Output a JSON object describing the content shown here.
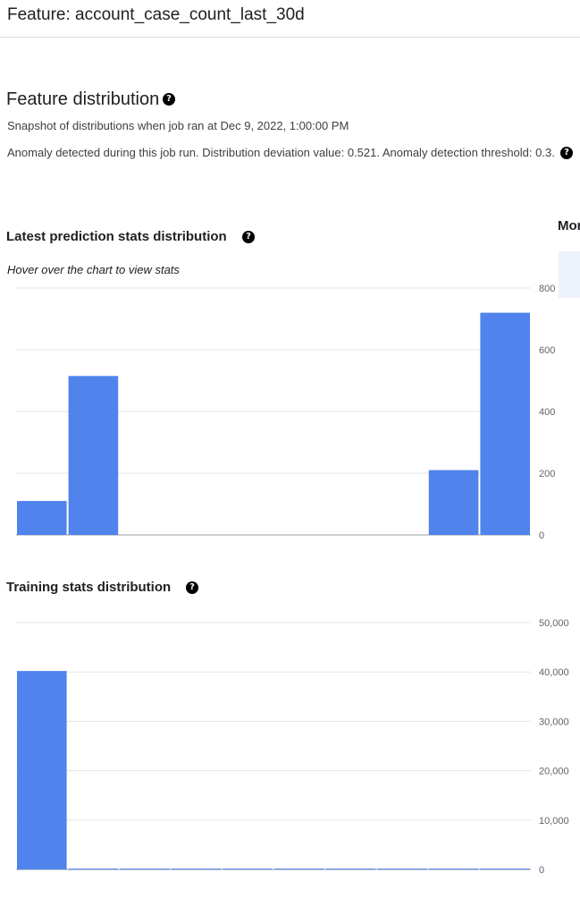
{
  "header": {
    "title": "Feature: account_case_count_last_30d"
  },
  "distribution": {
    "title": "Feature distribution",
    "snapshot": "Snapshot of distributions when job ran at Dec 9, 2022, 1:00:00 PM",
    "anomaly": "Anomaly detected during this job run. Distribution deviation value: 0.521. Anomaly detection threshold: 0.3."
  },
  "help_glyph": "?",
  "side": {
    "label": "Mor"
  },
  "prediction": {
    "title": "Latest prediction stats distribution",
    "hint": "Hover over the chart to view stats"
  },
  "training": {
    "title": "Training stats distribution"
  },
  "colors": {
    "bar": "#5083ec",
    "grid": "#e6e6e6",
    "tick_text": "#5f6368"
  },
  "chart_data": [
    {
      "type": "bar",
      "title": "Latest prediction stats distribution",
      "bins": 10,
      "values": [
        110,
        515,
        0,
        0,
        0,
        0,
        0,
        0,
        210,
        720
      ],
      "ylim": [
        0,
        800
      ],
      "yticks": [
        0,
        200,
        400,
        600,
        800
      ],
      "ytick_labels": [
        "0",
        "200",
        "400",
        "600",
        "800"
      ],
      "axis_position": "right",
      "grid": true
    },
    {
      "type": "bar",
      "title": "Training stats distribution",
      "bins": 10,
      "values": [
        40200,
        100,
        60,
        40,
        30,
        20,
        15,
        10,
        8,
        5
      ],
      "ylim": [
        0,
        50000
      ],
      "yticks": [
        0,
        10000,
        20000,
        30000,
        40000,
        50000
      ],
      "ytick_labels": [
        "0",
        "10,000",
        "20,000",
        "30,000",
        "40,000",
        "50,000"
      ],
      "axis_position": "right",
      "grid": true
    }
  ]
}
